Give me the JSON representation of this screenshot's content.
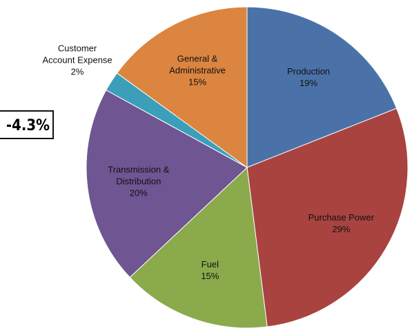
{
  "chart_data": {
    "type": "pie",
    "categories": [
      "Production",
      "Purchase Power",
      "Fuel",
      "Transmission & Distribution",
      "Customer Account Expense",
      "General & Administrative"
    ],
    "values": [
      19,
      29,
      15,
      20,
      2,
      15
    ],
    "value_labels": [
      "19%",
      "29%",
      "15%",
      "20%",
      "2%",
      "15%"
    ],
    "colors": [
      "#4a72a8",
      "#a8433f",
      "#8aaa4c",
      "#6f5592",
      "#3b9fb9",
      "#db8541"
    ],
    "annotation": "-4.3%"
  }
}
